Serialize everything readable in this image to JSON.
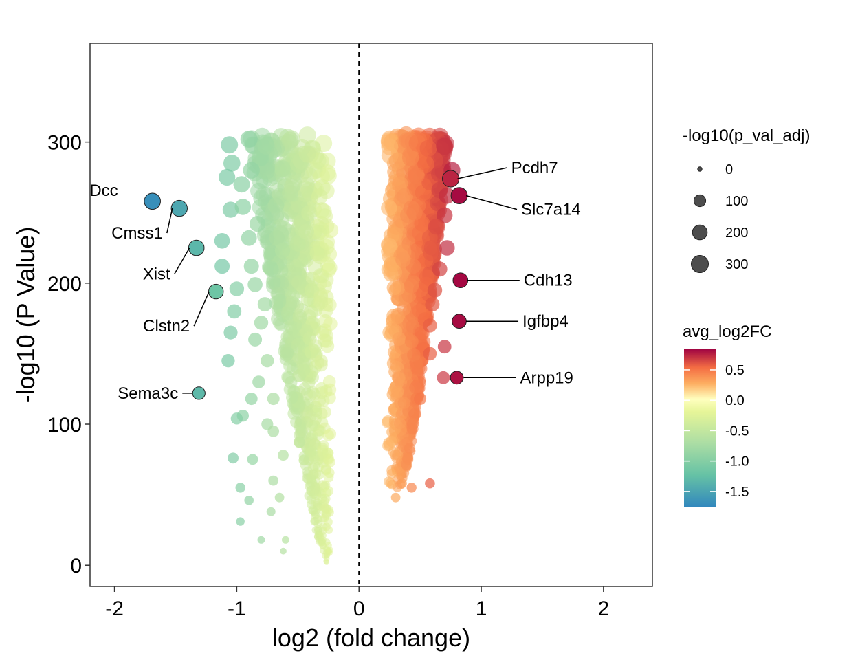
{
  "chart_data": {
    "type": "scatter",
    "xlabel": "log2 (fold change)",
    "ylabel": "-log10 (P Value)",
    "xlim": [
      -2.2,
      2.4
    ],
    "ylim": [
      -15,
      370
    ],
    "xticks": [
      -2,
      -1,
      0,
      1,
      2
    ],
    "yticks": [
      0,
      100,
      200,
      300
    ],
    "vline_x": 0,
    "grid": false,
    "legend_position": "right",
    "size_legend": {
      "title": "-log10(p_val_adj)",
      "values": [
        0,
        100,
        200,
        300
      ]
    },
    "color_legend": {
      "title": "avg_log2FC",
      "ticks": [
        0.5,
        0.0,
        -0.5,
        -1.0,
        -1.5
      ],
      "range": [
        -1.75,
        0.85
      ],
      "colormap": "Spectral"
    },
    "labeled_points": [
      {
        "gene": "Dcc",
        "x": -1.69,
        "y": 258
      },
      {
        "gene": "Cmss1",
        "x": -1.47,
        "y": 253
      },
      {
        "gene": "Xist",
        "x": -1.33,
        "y": 225
      },
      {
        "gene": "Clstn2",
        "x": -1.17,
        "y": 194
      },
      {
        "gene": "Sema3c",
        "x": -1.31,
        "y": 122
      },
      {
        "gene": "Pcdh7",
        "x": 0.75,
        "y": 274
      },
      {
        "gene": "Slc7a14",
        "x": 0.82,
        "y": 262
      },
      {
        "gene": "Cdh13",
        "x": 0.83,
        "y": 202
      },
      {
        "gene": "Igfbp4",
        "x": 0.82,
        "y": 173
      },
      {
        "gene": "Arpp19",
        "x": 0.8,
        "y": 133
      }
    ],
    "outlier_points": [
      {
        "x": -1.06,
        "y": 298
      },
      {
        "x": -1.04,
        "y": 285
      },
      {
        "x": -1.08,
        "y": 275
      },
      {
        "x": -0.9,
        "y": 302
      },
      {
        "x": -0.88,
        "y": 280
      },
      {
        "x": -0.96,
        "y": 270
      },
      {
        "x": -1.05,
        "y": 252
      },
      {
        "x": -0.95,
        "y": 254
      },
      {
        "x": -0.83,
        "y": 242
      },
      {
        "x": -0.9,
        "y": 232
      },
      {
        "x": -1.12,
        "y": 230
      },
      {
        "x": -1.12,
        "y": 212
      },
      {
        "x": -0.88,
        "y": 212
      },
      {
        "x": -0.85,
        "y": 199
      },
      {
        "x": -1.0,
        "y": 196
      },
      {
        "x": -0.77,
        "y": 185
      },
      {
        "x": -1.02,
        "y": 180
      },
      {
        "x": -0.8,
        "y": 172
      },
      {
        "x": -1.05,
        "y": 165
      },
      {
        "x": -0.85,
        "y": 160
      },
      {
        "x": -1.07,
        "y": 145
      },
      {
        "x": -0.75,
        "y": 145
      },
      {
        "x": -0.82,
        "y": 130
      },
      {
        "x": -0.88,
        "y": 118
      },
      {
        "x": -0.7,
        "y": 118
      },
      {
        "x": -0.95,
        "y": 106
      },
      {
        "x": -1.0,
        "y": 104
      },
      {
        "x": -0.75,
        "y": 100
      },
      {
        "x": -0.7,
        "y": 95
      },
      {
        "x": -1.03,
        "y": 76
      },
      {
        "x": -0.87,
        "y": 75
      },
      {
        "x": -0.62,
        "y": 78
      },
      {
        "x": -0.97,
        "y": 55
      },
      {
        "x": -0.7,
        "y": 60
      },
      {
        "x": -0.65,
        "y": 48
      },
      {
        "x": -0.9,
        "y": 46
      },
      {
        "x": -0.72,
        "y": 38
      },
      {
        "x": -0.97,
        "y": 31
      },
      {
        "x": -0.8,
        "y": 18
      },
      {
        "x": -0.6,
        "y": 18
      },
      {
        "x": -0.62,
        "y": 10
      },
      {
        "x": 0.7,
        "y": 297
      },
      {
        "x": 0.76,
        "y": 280
      },
      {
        "x": 0.66,
        "y": 266
      },
      {
        "x": 0.72,
        "y": 262
      },
      {
        "x": 0.7,
        "y": 248
      },
      {
        "x": 0.63,
        "y": 240
      },
      {
        "x": 0.72,
        "y": 225
      },
      {
        "x": 0.66,
        "y": 210
      },
      {
        "x": 0.62,
        "y": 195
      },
      {
        "x": 0.6,
        "y": 185
      },
      {
        "x": 0.58,
        "y": 170
      },
      {
        "x": 0.7,
        "y": 155
      },
      {
        "x": 0.58,
        "y": 150
      },
      {
        "x": 0.69,
        "y": 133
      },
      {
        "x": 0.5,
        "y": 118
      },
      {
        "x": 0.44,
        "y": 100
      },
      {
        "x": 0.4,
        "y": 75
      },
      {
        "x": 0.58,
        "y": 58
      },
      {
        "x": 0.43,
        "y": 55
      },
      {
        "x": 0.35,
        "y": 58
      },
      {
        "x": 0.3,
        "y": 48
      }
    ],
    "bulk_clouds": [
      {
        "side": "down",
        "x_range": [
          -0.92,
          -0.22
        ],
        "y_range": [
          0,
          305
        ]
      },
      {
        "side": "up",
        "x_range": [
          0.22,
          0.78
        ],
        "y_range": [
          55,
          305
        ]
      }
    ]
  }
}
